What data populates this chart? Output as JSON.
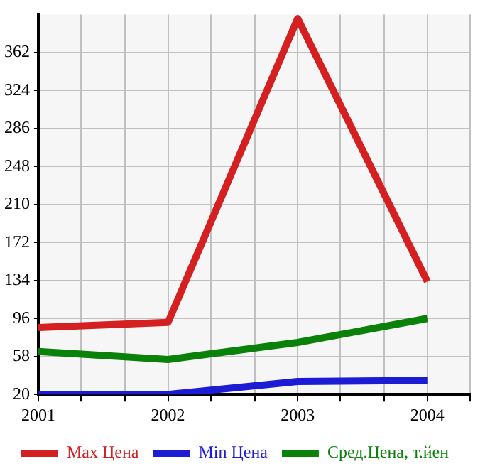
{
  "chart_data": {
    "type": "line",
    "x": [
      2001,
      2002,
      2003,
      2004
    ],
    "series": [
      {
        "name": "Max Цена",
        "color": "#d42020",
        "values": [
          87,
          92,
          396,
          133
        ]
      },
      {
        "name": "Min Цена",
        "color": "#1c1cd4",
        "values": [
          20,
          20,
          33,
          34
        ]
      },
      {
        "name": "Сред.Цена, т.йен",
        "color": "#0a820a",
        "values": [
          63,
          55,
          72,
          96
        ]
      }
    ],
    "xlim": [
      2001,
      2004.33
    ],
    "xticks": [
      2001,
      {
        "value": 2001.33,
        "label": null
      },
      {
        "value": 2001.67,
        "label": null
      },
      2002,
      {
        "value": 2002.33,
        "label": null
      },
      {
        "value": 2002.67,
        "label": null
      },
      2003,
      {
        "value": 2003.33,
        "label": null
      },
      {
        "value": 2003.67,
        "label": null
      },
      2004,
      {
        "value": 2004.33,
        "label": null
      }
    ],
    "ylim": [
      20,
      400
    ],
    "yticks": [
      20,
      58,
      96,
      134,
      172,
      210,
      248,
      286,
      324,
      362
    ],
    "grid": true,
    "legend": "bottom",
    "marker": "none",
    "line_style": "solid"
  }
}
